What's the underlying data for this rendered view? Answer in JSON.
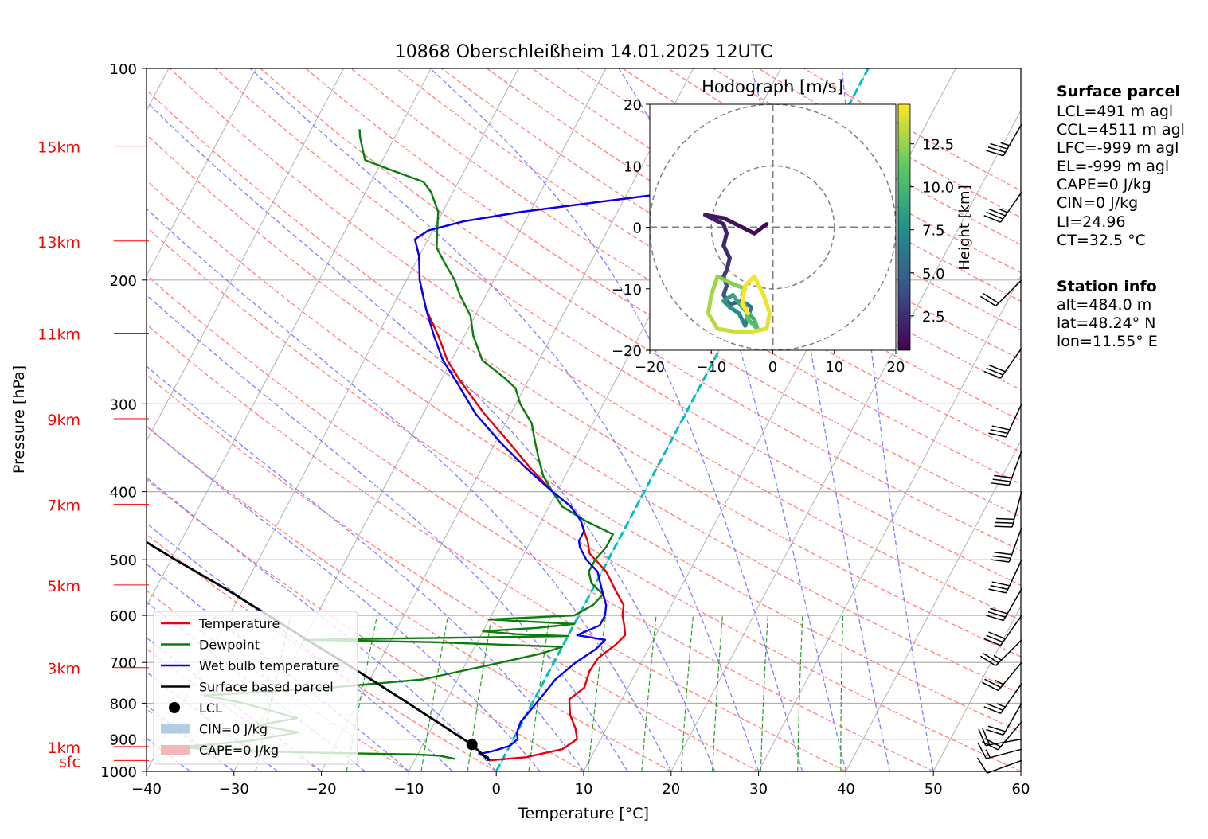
{
  "chart_data": {
    "type": "skew-t log-p",
    "title": "10868 Oberschleißheim 14.01.2025 12UTC",
    "xlabel": "Temperature [°C]",
    "ylabel": "Pressure [hPa]",
    "xlim": [
      -40,
      60
    ],
    "ylim_hpa": [
      1000,
      100
    ],
    "x_ticks": [
      -40,
      -30,
      -20,
      -10,
      0,
      10,
      20,
      30,
      40,
      50,
      60
    ],
    "x_tick_labels": [
      "−40",
      "−30",
      "−20",
      "−10",
      "0",
      "10",
      "20",
      "30",
      "40",
      "50",
      "60"
    ],
    "p_ticks": [
      1000,
      900,
      800,
      700,
      600,
      500,
      400,
      300,
      200,
      100
    ],
    "height_labels": [
      {
        "p": 965,
        "label": "sfc"
      },
      {
        "p": 922,
        "label": "1km"
      },
      {
        "p": 712,
        "label": "3km"
      },
      {
        "p": 543,
        "label": "5km"
      },
      {
        "p": 417,
        "label": "7km"
      },
      {
        "p": 315,
        "label": "9km"
      },
      {
        "p": 238,
        "label": "11km"
      },
      {
        "p": 176,
        "label": "13km"
      },
      {
        "p": 129,
        "label": "15km"
      }
    ],
    "colors": {
      "temperature": "#e8000b",
      "dewpoint": "#0a7d0a",
      "wetbulb": "#0000ff",
      "parcel": "#000000",
      "dry_adiabat": "#ff7f7f",
      "moist_adiabat": "#7f7fff",
      "mixing_ratio": "#2ca02c",
      "freezing_level": "#00bfbf",
      "isotherm": "#b0b0b0"
    },
    "series": [
      {
        "name": "Temperature",
        "points": [
          [
            965,
            -1.5
          ],
          [
            955,
            2.5
          ],
          [
            930,
            6.2
          ],
          [
            900,
            7.3
          ],
          [
            870,
            6.5
          ],
          [
            830,
            5.0
          ],
          [
            790,
            4.0
          ],
          [
            760,
            5.0
          ],
          [
            720,
            4.6
          ],
          [
            690,
            4.8
          ],
          [
            660,
            6.0
          ],
          [
            640,
            6.5
          ],
          [
            620,
            5.8
          ],
          [
            600,
            5.0
          ],
          [
            580,
            4.5
          ],
          [
            550,
            2.5
          ],
          [
            520,
            0.5
          ],
          [
            490,
            -2.5
          ],
          [
            470,
            -3.5
          ],
          [
            455,
            -4.5
          ],
          [
            440,
            -5.5
          ],
          [
            420,
            -7.5
          ],
          [
            400,
            -10.5
          ],
          [
            370,
            -14.5
          ],
          [
            340,
            -18.5
          ],
          [
            310,
            -23.0
          ],
          [
            280,
            -27.5
          ],
          [
            260,
            -30.5
          ],
          [
            240,
            -33.0
          ],
          [
            220,
            -36.0
          ],
          [
            200,
            -38.5
          ],
          [
            185,
            -40.0
          ],
          [
            175,
            -41.5
          ],
          [
            170,
            -40.5
          ],
          [
            165,
            -37.0
          ],
          [
            160,
            -31.0
          ],
          [
            155,
            -23.0
          ],
          [
            150,
            -14.5
          ],
          [
            145,
            -2.0
          ],
          [
            140,
            -2.5
          ],
          [
            135,
            -3.5
          ],
          [
            130,
            -1.5
          ],
          [
            127,
            1.5
          ]
        ]
      },
      {
        "name": "Dewpoint",
        "points": [
          [
            960,
            -5.5
          ],
          [
            950,
            -7.5
          ],
          [
            946,
            -10.5
          ],
          [
            940,
            -23.0
          ],
          [
            935,
            -30.0
          ],
          [
            925,
            -38.0
          ],
          [
            905,
            -30.0
          ],
          [
            880,
            -25.0
          ],
          [
            860,
            -30.0
          ],
          [
            840,
            -26.0
          ],
          [
            800,
            -33.0
          ],
          [
            780,
            -38.0
          ],
          [
            760,
            -24.0
          ],
          [
            740,
            -14.0
          ],
          [
            700,
            -6.0
          ],
          [
            680,
            -2.0
          ],
          [
            665,
            0.0
          ],
          [
            655,
            -15.0
          ],
          [
            650,
            -30.0
          ],
          [
            646,
            -15.0
          ],
          [
            642,
            0.0
          ],
          [
            638,
            -6.0
          ],
          [
            632,
            -10.0
          ],
          [
            625,
            -4.0
          ],
          [
            617,
            0.0
          ],
          [
            608,
            -10.0
          ],
          [
            600,
            -0.5
          ],
          [
            580,
            1.0
          ],
          [
            560,
            1.5
          ],
          [
            540,
            -0.5
          ],
          [
            520,
            -1.5
          ],
          [
            500,
            -1.5
          ],
          [
            480,
            -1.0
          ],
          [
            460,
            -1.0
          ],
          [
            440,
            -5.0
          ],
          [
            420,
            -8.5
          ],
          [
            400,
            -10.5
          ],
          [
            380,
            -12.5
          ],
          [
            360,
            -14.0
          ],
          [
            340,
            -15.5
          ],
          [
            320,
            -17.0
          ],
          [
            300,
            -19.5
          ],
          [
            285,
            -21.0
          ],
          [
            275,
            -23.0
          ],
          [
            260,
            -26.5
          ],
          [
            240,
            -29.0
          ],
          [
            225,
            -30.5
          ],
          [
            210,
            -33.0
          ],
          [
            200,
            -34.5
          ],
          [
            190,
            -36.5
          ],
          [
            180,
            -38.5
          ],
          [
            170,
            -39.5
          ],
          [
            160,
            -40.5
          ],
          [
            150,
            -42.5
          ],
          [
            145,
            -44.0
          ],
          [
            140,
            -48.0
          ],
          [
            135,
            -52.0
          ],
          [
            130,
            -53.0
          ],
          [
            125,
            -54.0
          ],
          [
            122,
            -54.5
          ]
        ]
      },
      {
        "name": "Wet bulb temperature",
        "points": [
          [
            965,
            -1.5
          ],
          [
            955,
            -1.8
          ],
          [
            945,
            -3.0
          ],
          [
            935,
            -1.5
          ],
          [
            920,
            0.0
          ],
          [
            900,
            0.5
          ],
          [
            880,
            0.0
          ],
          [
            850,
            -0.2
          ],
          [
            820,
            0.2
          ],
          [
            780,
            0.7
          ],
          [
            740,
            1.2
          ],
          [
            700,
            2.5
          ],
          [
            670,
            4.0
          ],
          [
            650,
            4.5
          ],
          [
            640,
            1.0
          ],
          [
            620,
            3.0
          ],
          [
            600,
            3.0
          ],
          [
            580,
            2.5
          ],
          [
            550,
            1.0
          ],
          [
            520,
            -0.5
          ],
          [
            500,
            -2.5
          ],
          [
            480,
            -4.0
          ],
          [
            470,
            -4.5
          ],
          [
            455,
            -4.5
          ],
          [
            440,
            -5.5
          ],
          [
            420,
            -7.5
          ],
          [
            400,
            -10.5
          ],
          [
            370,
            -15.0
          ],
          [
            340,
            -19.5
          ],
          [
            310,
            -24.0
          ],
          [
            280,
            -28.0
          ],
          [
            260,
            -31.0
          ],
          [
            240,
            -33.5
          ],
          [
            220,
            -36.0
          ],
          [
            200,
            -38.5
          ],
          [
            185,
            -40.0
          ],
          [
            175,
            -41.5
          ],
          [
            170,
            -40.5
          ],
          [
            165,
            -37.0
          ],
          [
            160,
            -31.0
          ],
          [
            155,
            -23.0
          ],
          [
            150,
            -14.5
          ],
          [
            145,
            -2.0
          ],
          [
            140,
            -2.5
          ],
          [
            135,
            -3.5
          ],
          [
            130,
            -1.5
          ],
          [
            127,
            1.5
          ]
        ]
      },
      {
        "name": "Surface based parcel",
        "points": [
          [
            965,
            -1.5
          ],
          [
            916,
            -4.4
          ],
          [
            900,
            -5.7
          ],
          [
            850,
            -9.8
          ],
          [
            800,
            -14.2
          ],
          [
            750,
            -18.9
          ],
          [
            700,
            -24.0
          ],
          [
            650,
            -29.6
          ],
          [
            600,
            -35.5
          ],
          [
            550,
            -42.0
          ],
          [
            500,
            -49.5
          ],
          [
            450,
            -57.5
          ],
          [
            400,
            -66.0
          ],
          [
            350,
            -75.5
          ],
          [
            300,
            -86.0
          ]
        ]
      }
    ],
    "lcl": {
      "p": 916,
      "t": -4.4
    },
    "freezing_line": {
      "label": "",
      "slope": "isotherm 0 °C"
    },
    "wind_barbs": [
      {
        "p": 965,
        "dir": 250,
        "kt": 10
      },
      {
        "p": 930,
        "dir": 255,
        "kt": 15
      },
      {
        "p": 900,
        "dir": 260,
        "kt": 20
      },
      {
        "p": 850,
        "dir": 220,
        "kt": 20
      },
      {
        "p": 800,
        "dir": 210,
        "kt": 20
      },
      {
        "p": 750,
        "dir": 215,
        "kt": 25
      },
      {
        "p": 700,
        "dir": 220,
        "kt": 25
      },
      {
        "p": 650,
        "dir": 225,
        "kt": 25
      },
      {
        "p": 600,
        "dir": 215,
        "kt": 30
      },
      {
        "p": 550,
        "dir": 210,
        "kt": 30
      },
      {
        "p": 500,
        "dir": 205,
        "kt": 30
      },
      {
        "p": 450,
        "dir": 200,
        "kt": 30
      },
      {
        "p": 400,
        "dir": 195,
        "kt": 30
      },
      {
        "p": 350,
        "dir": 200,
        "kt": 30
      },
      {
        "p": 300,
        "dir": 205,
        "kt": 30
      },
      {
        "p": 250,
        "dir": 215,
        "kt": 30
      },
      {
        "p": 200,
        "dir": 225,
        "kt": 20
      },
      {
        "p": 150,
        "dir": 215,
        "kt": 35
      },
      {
        "p": 120,
        "dir": 210,
        "kt": 35
      }
    ],
    "legend": {
      "position": "lower-left",
      "entries": [
        {
          "label": "Temperature",
          "kind": "line",
          "color": "#e8000b"
        },
        {
          "label": "Dewpoint",
          "kind": "line",
          "color": "#0a7d0a"
        },
        {
          "label": "Wet bulb temperature",
          "kind": "line",
          "color": "#0000ff"
        },
        {
          "label": "Surface based parcel",
          "kind": "line",
          "color": "#000000"
        },
        {
          "label": "LCL",
          "kind": "dot",
          "color": "#000000"
        },
        {
          "label": "CIN=0 J/kg",
          "kind": "patch",
          "color": "#b0cde3"
        },
        {
          "label": "CAPE=0 J/kg",
          "kind": "patch",
          "color": "#f4b6b6"
        }
      ]
    },
    "hodograph": {
      "title": "Hodograph [m/s]",
      "xlim": [
        -20,
        20
      ],
      "ylim": [
        -20,
        20
      ],
      "ticks": [
        -20,
        -10,
        0,
        10,
        20
      ],
      "tick_labels": [
        "−20",
        "−10",
        "0",
        "10",
        "20"
      ],
      "rings": [
        10,
        20
      ],
      "colorbar_label": "Height [km]",
      "colorbar_ticks": [
        "2.5",
        "5.0",
        "7.5",
        "10.0",
        "12.5"
      ],
      "colorbar_values": [
        2.5,
        5.0,
        7.5,
        10.0,
        12.5
      ],
      "colorbar_range": [
        0.5,
        14.8
      ],
      "points": [
        {
          "u": -1.0,
          "v": 0.5,
          "h": 0.5
        },
        {
          "u": -3.0,
          "v": -1.0,
          "h": 0.8
        },
        {
          "u": -6.0,
          "v": 0.5,
          "h": 1.0
        },
        {
          "u": -8.0,
          "v": 1.5,
          "h": 1.2
        },
        {
          "u": -11.0,
          "v": 2.0,
          "h": 1.4
        },
        {
          "u": -8.0,
          "v": 0.5,
          "h": 1.6
        },
        {
          "u": -7.5,
          "v": -1.0,
          "h": 1.8
        },
        {
          "u": -8.0,
          "v": -3.0,
          "h": 2.0
        },
        {
          "u": -7.0,
          "v": -5.0,
          "h": 2.3
        },
        {
          "u": -7.5,
          "v": -7.0,
          "h": 2.7
        },
        {
          "u": -8.0,
          "v": -8.0,
          "h": 3.0
        },
        {
          "u": -7.5,
          "v": -9.5,
          "h": 3.5
        },
        {
          "u": -8.0,
          "v": -11.0,
          "h": 4.0
        },
        {
          "u": -7.0,
          "v": -12.5,
          "h": 4.5
        },
        {
          "u": -5.0,
          "v": -12.0,
          "h": 5.0
        },
        {
          "u": -3.5,
          "v": -13.0,
          "h": 5.5
        },
        {
          "u": -4.0,
          "v": -14.5,
          "h": 6.0
        },
        {
          "u": -4.5,
          "v": -16.0,
          "h": 6.5
        },
        {
          "u": -5.5,
          "v": -14.0,
          "h": 7.0
        },
        {
          "u": -7.0,
          "v": -13.0,
          "h": 7.5
        },
        {
          "u": -8.0,
          "v": -12.0,
          "h": 8.0
        },
        {
          "u": -6.5,
          "v": -11.0,
          "h": 8.5
        },
        {
          "u": -5.0,
          "v": -13.0,
          "h": 9.0
        },
        {
          "u": -3.0,
          "v": -15.0,
          "h": 9.5
        },
        {
          "u": -2.5,
          "v": -16.5,
          "h": 10.0
        },
        {
          "u": -4.0,
          "v": -15.0,
          "h": 10.5
        },
        {
          "u": -5.0,
          "v": -11.0,
          "h": 11.0
        },
        {
          "u": -4.5,
          "v": -10.0,
          "h": 11.5
        },
        {
          "u": -7.0,
          "v": -9.0,
          "h": 12.0
        },
        {
          "u": -9.0,
          "v": -8.0,
          "h": 12.3
        },
        {
          "u": -10.0,
          "v": -11.0,
          "h": 12.6
        },
        {
          "u": -10.5,
          "v": -14.0,
          "h": 12.9
        },
        {
          "u": -9.0,
          "v": -16.5,
          "h": 13.2
        },
        {
          "u": -6.0,
          "v": -17.0,
          "h": 13.5
        },
        {
          "u": -3.5,
          "v": -17.0,
          "h": 13.8
        },
        {
          "u": -1.0,
          "v": -16.5,
          "h": 14.0
        },
        {
          "u": -0.5,
          "v": -14.0,
          "h": 14.2
        },
        {
          "u": -1.5,
          "v": -11.0,
          "h": 14.4
        },
        {
          "u": -3.0,
          "v": -8.0,
          "h": 14.5
        },
        {
          "u": -4.5,
          "v": -9.5,
          "h": 14.6
        },
        {
          "u": -5.0,
          "v": -12.5,
          "h": 14.7
        },
        {
          "u": -4.0,
          "v": -14.0,
          "h": 14.8
        }
      ]
    },
    "info": {
      "surface_parcel_title": "Surface parcel",
      "surface_parcel": [
        "LCL=491 m agl",
        "CCL=4511 m agl",
        "LFC=-999 m agl",
        "EL=-999 m agl",
        "CAPE=0 J/kg",
        "CIN=0 J/kg",
        "LI=24.96",
        "CT=32.5 °C"
      ],
      "station_title": "Station info",
      "station": [
        "alt=484.0 m",
        "lat=48.24° N",
        "lon=11.55° E"
      ]
    }
  }
}
